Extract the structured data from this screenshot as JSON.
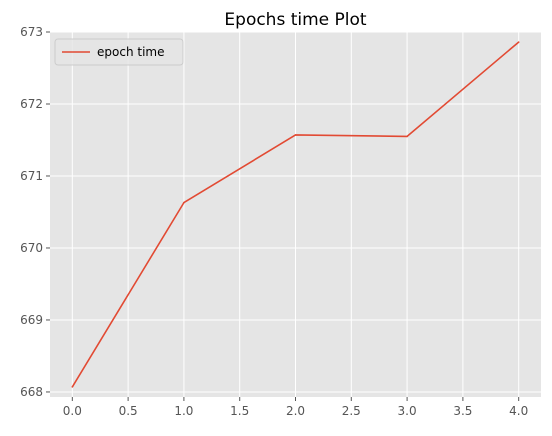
{
  "chart_data": {
    "type": "line",
    "title": "Epochs time Plot",
    "xlabel": "",
    "ylabel": "",
    "x": [
      0,
      1,
      2,
      3,
      4
    ],
    "series": [
      {
        "name": "epoch time",
        "color": "#e24a33",
        "values": [
          668.07,
          670.63,
          671.57,
          671.55,
          672.86
        ]
      }
    ],
    "xlim": [
      -0.2,
      4.2
    ],
    "ylim": [
      667.93,
      673.0
    ],
    "xticks": [
      0.0,
      0.5,
      1.0,
      1.5,
      2.0,
      2.5,
      3.0,
      3.5,
      4.0
    ],
    "xtick_labels": [
      "0.0",
      "0.5",
      "1.0",
      "1.5",
      "2.0",
      "2.5",
      "3.0",
      "3.5",
      "4.0"
    ],
    "yticks": [
      668,
      669,
      670,
      671,
      672,
      673
    ],
    "ytick_labels": [
      "668",
      "669",
      "670",
      "671",
      "672",
      "673"
    ],
    "grid": true,
    "legend_position": "upper-left",
    "style": {
      "background": "#e5e5e5",
      "grid_color": "#ffffff",
      "tick_color": "#555555"
    }
  }
}
